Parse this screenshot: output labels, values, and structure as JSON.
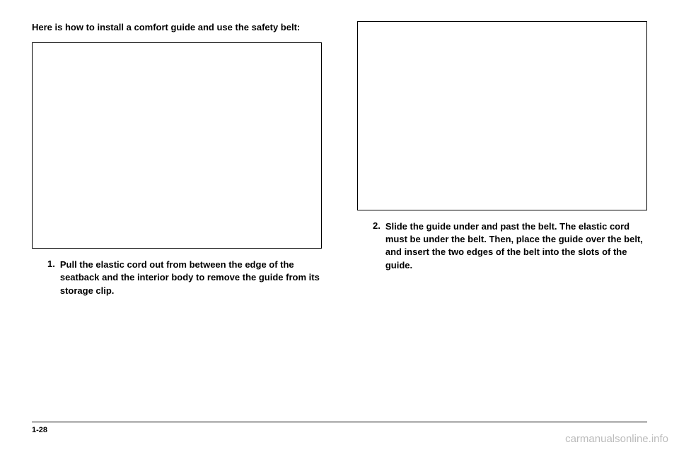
{
  "intro": "Here is how to install a comfort guide and use the safety belt:",
  "steps": [
    {
      "number": "1.",
      "text": "Pull the elastic cord out from between the edge of the seatback and the interior body to remove the guide from its storage clip."
    },
    {
      "number": "2.",
      "text": "Slide the guide under and past the belt. The elastic cord must be under the belt. Then, place the guide over the belt, and insert the two edges of the belt into the slots of the guide."
    }
  ],
  "pageNumber": "1-28",
  "watermark": "carmanualsonline.info",
  "figures": {
    "left": {
      "border_color": "#000000",
      "background": "#ffffff"
    },
    "right": {
      "border_color": "#000000",
      "background": "#ffffff"
    }
  }
}
